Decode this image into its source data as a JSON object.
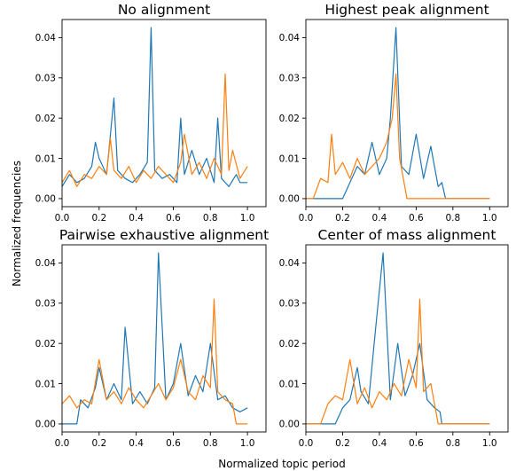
{
  "figure": {
    "xlabel": "Normalized topic period",
    "ylabel": "Normalized frequencies"
  },
  "colors": {
    "series_a": "#1f77b4",
    "series_b": "#ff7f0e"
  },
  "chart_data": [
    {
      "type": "line",
      "title": "No alignment",
      "xlim": [
        0.0,
        1.1
      ],
      "ylim": [
        -0.002,
        0.0445
      ],
      "xticks": [
        "0.0",
        "0.2",
        "0.4",
        "0.6",
        "0.8",
        "1.0"
      ],
      "yticks": [
        "0.00",
        "0.01",
        "0.02",
        "0.03",
        "0.04"
      ],
      "series": [
        {
          "x": [
            0.0,
            0.04,
            0.08,
            0.12,
            0.16,
            0.18,
            0.2,
            0.24,
            0.28,
            0.3,
            0.34,
            0.38,
            0.42,
            0.46,
            0.48,
            0.5,
            0.54,
            0.58,
            0.62,
            0.64,
            0.66,
            0.7,
            0.74,
            0.78,
            0.82,
            0.84,
            0.86,
            0.9,
            0.94,
            0.96,
            1.0
          ],
          "values": [
            0.003,
            0.006,
            0.004,
            0.005,
            0.008,
            0.014,
            0.01,
            0.006,
            0.025,
            0.007,
            0.005,
            0.004,
            0.006,
            0.009,
            0.0425,
            0.007,
            0.005,
            0.006,
            0.004,
            0.02,
            0.006,
            0.012,
            0.006,
            0.01,
            0.004,
            0.02,
            0.005,
            0.003,
            0.006,
            0.004,
            0.004
          ]
        },
        {
          "x": [
            0.0,
            0.04,
            0.08,
            0.12,
            0.16,
            0.2,
            0.24,
            0.26,
            0.28,
            0.32,
            0.36,
            0.4,
            0.44,
            0.48,
            0.52,
            0.56,
            0.6,
            0.64,
            0.66,
            0.7,
            0.74,
            0.78,
            0.82,
            0.86,
            0.88,
            0.9,
            0.92,
            0.96,
            1.0
          ],
          "values": [
            0.004,
            0.007,
            0.003,
            0.006,
            0.005,
            0.008,
            0.006,
            0.015,
            0.007,
            0.005,
            0.008,
            0.004,
            0.007,
            0.005,
            0.008,
            0.006,
            0.004,
            0.009,
            0.016,
            0.006,
            0.009,
            0.005,
            0.01,
            0.006,
            0.031,
            0.007,
            0.012,
            0.005,
            0.008
          ]
        }
      ]
    },
    {
      "type": "line",
      "title": "Highest peak alignment",
      "xlim": [
        0.0,
        1.1
      ],
      "ylim": [
        -0.002,
        0.0445
      ],
      "xticks": [
        "0.0",
        "0.2",
        "0.4",
        "0.6",
        "0.8",
        "1.0"
      ],
      "yticks": [
        "0.00",
        "0.01",
        "0.02",
        "0.03",
        "0.04"
      ],
      "series": [
        {
          "x": [
            0.0,
            0.2,
            0.24,
            0.28,
            0.32,
            0.36,
            0.4,
            0.44,
            0.46,
            0.49,
            0.52,
            0.56,
            0.6,
            0.64,
            0.68,
            0.72,
            0.74,
            0.76,
            1.0
          ],
          "values": [
            0.0,
            0.0,
            0.004,
            0.008,
            0.006,
            0.014,
            0.006,
            0.01,
            0.02,
            0.0425,
            0.008,
            0.006,
            0.016,
            0.005,
            0.013,
            0.003,
            0.004,
            0.0,
            0.0
          ],
          "note": "flat at zero outside 0.2–0.75"
        },
        {
          "x": [
            0.0,
            0.04,
            0.08,
            0.12,
            0.14,
            0.16,
            0.2,
            0.24,
            0.28,
            0.32,
            0.36,
            0.4,
            0.44,
            0.47,
            0.49,
            0.51,
            0.53,
            0.55,
            0.6,
            1.0
          ],
          "values": [
            0.0,
            0.0,
            0.005,
            0.004,
            0.016,
            0.006,
            0.009,
            0.005,
            0.01,
            0.006,
            0.008,
            0.01,
            0.014,
            0.02,
            0.031,
            0.01,
            0.005,
            0.0,
            0.0,
            0.0
          ]
        }
      ]
    },
    {
      "type": "line",
      "title": "Pairwise exhaustive alignment",
      "xlim": [
        0.0,
        1.1
      ],
      "ylim": [
        -0.002,
        0.0445
      ],
      "xticks": [
        "0.0",
        "0.2",
        "0.4",
        "0.6",
        "0.8",
        "1.0"
      ],
      "yticks": [
        "0.00",
        "0.01",
        "0.02",
        "0.03",
        "0.04"
      ],
      "series": [
        {
          "x": [
            0.0,
            0.08,
            0.1,
            0.14,
            0.18,
            0.2,
            0.24,
            0.28,
            0.32,
            0.34,
            0.38,
            0.42,
            0.46,
            0.5,
            0.52,
            0.56,
            0.6,
            0.64,
            0.68,
            0.72,
            0.76,
            0.8,
            0.84,
            0.88,
            0.92,
            0.96,
            1.0
          ],
          "values": [
            0.0,
            0.0,
            0.006,
            0.004,
            0.009,
            0.014,
            0.006,
            0.01,
            0.006,
            0.024,
            0.005,
            0.008,
            0.005,
            0.009,
            0.0425,
            0.006,
            0.01,
            0.02,
            0.007,
            0.012,
            0.008,
            0.02,
            0.006,
            0.007,
            0.004,
            0.003,
            0.004
          ]
        },
        {
          "x": [
            0.0,
            0.04,
            0.08,
            0.12,
            0.16,
            0.2,
            0.24,
            0.28,
            0.32,
            0.36,
            0.4,
            0.44,
            0.48,
            0.52,
            0.56,
            0.6,
            0.64,
            0.68,
            0.72,
            0.76,
            0.8,
            0.82,
            0.84,
            0.88,
            0.92,
            0.94,
            1.0
          ],
          "values": [
            0.005,
            0.007,
            0.004,
            0.006,
            0.005,
            0.016,
            0.006,
            0.008,
            0.005,
            0.009,
            0.006,
            0.004,
            0.007,
            0.01,
            0.006,
            0.009,
            0.016,
            0.008,
            0.006,
            0.012,
            0.009,
            0.031,
            0.008,
            0.006,
            0.005,
            0.0,
            0.0
          ]
        }
      ]
    },
    {
      "type": "line",
      "title": "Center of mass alignment",
      "xlim": [
        0.0,
        1.1
      ],
      "ylim": [
        -0.002,
        0.0445
      ],
      "xticks": [
        "0.0",
        "0.2",
        "0.4",
        "0.6",
        "0.8",
        "1.0"
      ],
      "yticks": [
        "0.00",
        "0.01",
        "0.02",
        "0.03",
        "0.04"
      ],
      "series": [
        {
          "x": [
            0.0,
            0.16,
            0.2,
            0.24,
            0.28,
            0.3,
            0.34,
            0.38,
            0.42,
            0.46,
            0.5,
            0.54,
            0.58,
            0.62,
            0.66,
            0.7,
            0.73,
            0.74,
            1.0
          ],
          "values": [
            0.0,
            0.0,
            0.004,
            0.006,
            0.014,
            0.008,
            0.005,
            0.024,
            0.0425,
            0.006,
            0.02,
            0.007,
            0.012,
            0.02,
            0.006,
            0.004,
            0.003,
            0.0,
            0.0
          ]
        },
        {
          "x": [
            0.0,
            0.08,
            0.12,
            0.16,
            0.2,
            0.24,
            0.28,
            0.32,
            0.36,
            0.4,
            0.44,
            0.48,
            0.52,
            0.56,
            0.6,
            0.62,
            0.64,
            0.68,
            0.72,
            1.0
          ],
          "values": [
            0.0,
            0.0,
            0.005,
            0.007,
            0.006,
            0.016,
            0.005,
            0.009,
            0.004,
            0.008,
            0.006,
            0.01,
            0.007,
            0.016,
            0.009,
            0.031,
            0.008,
            0.01,
            0.0,
            0.0
          ]
        }
      ]
    }
  ]
}
